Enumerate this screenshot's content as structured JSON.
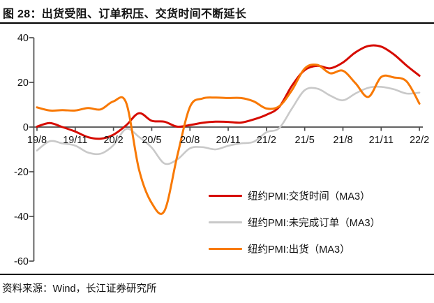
{
  "title": "图 28：出货受阻、订单积压、交货时间不断延长",
  "source": "资料来源：Wind，长江证券研究所",
  "chart_data": {
    "type": "line",
    "title": "图 28：出货受阻、订单积压、交货时间不断延长",
    "x_unit": "monthly (yy/m)",
    "x": [
      "19/8",
      "19/9",
      "19/10",
      "19/11",
      "19/12",
      "20/1",
      "20/2",
      "20/3",
      "20/4",
      "20/5",
      "20/6",
      "20/7",
      "20/8",
      "20/9",
      "20/10",
      "20/11",
      "20/12",
      "21/1",
      "21/2",
      "21/3",
      "21/4",
      "21/5",
      "21/6",
      "21/7",
      "21/8",
      "21/9",
      "21/10",
      "21/11",
      "21/12",
      "22/1",
      "22/2"
    ],
    "x_tick_labels": [
      "19/8",
      "19/11",
      "20/2",
      "20/5",
      "20/8",
      "20/11",
      "21/2",
      "21/5",
      "21/8",
      "21/11",
      "22/2"
    ],
    "y_ticks": [
      40,
      20,
      0,
      -20,
      -40,
      -60
    ],
    "ylim": [
      -60,
      40
    ],
    "grid": "off",
    "legend_position": "inside lower-right",
    "axis_color": "#4d4d4d",
    "text_color": "#111111",
    "series": [
      {
        "name": "纽约PMI:交货时间（MA3）",
        "color": "#d60b00",
        "width": 3.0,
        "values": [
          0.2,
          1.8,
          0.0,
          -2.0,
          -4.5,
          -5.2,
          -3.4,
          0.8,
          6.2,
          2.8,
          2.4,
          0.2,
          0.9,
          1.9,
          2.4,
          2.3,
          2.0,
          3.4,
          5.5,
          9.0,
          18.5,
          25.5,
          27.4,
          26.3,
          28.9,
          33.5,
          36.3,
          36.0,
          32.5,
          27.5,
          23.0
        ]
      },
      {
        "name": "纽约PMI:未完成订单（MA3）",
        "color": "#c9c9c9",
        "width": 2.6,
        "values": [
          -10.5,
          -6.3,
          -7.3,
          -8.3,
          -11.4,
          -11.9,
          -8.1,
          -0.8,
          -4.4,
          -9.2,
          -16.3,
          -14.5,
          -9.5,
          -9.0,
          -10.0,
          -8.4,
          -7.3,
          -6.6,
          -2.3,
          -0.5,
          8.3,
          16.5,
          17.2,
          14.1,
          12.0,
          15.1,
          17.6,
          18.0,
          16.9,
          15.0,
          15.4
        ]
      },
      {
        "name": "纽约PMI:出货（MA3）",
        "color": "#f87905",
        "width": 3.0,
        "values": [
          8.8,
          7.4,
          7.6,
          7.4,
          8.5,
          7.9,
          11.5,
          10.8,
          -19.0,
          -34.0,
          -37.5,
          -13.0,
          9.0,
          12.8,
          13.2,
          13.0,
          13.0,
          11.5,
          8.3,
          9.3,
          16.5,
          26.2,
          27.8,
          24.1,
          25.2,
          19.5,
          13.5,
          22.4,
          22.2,
          20.4,
          10.5
        ]
      }
    ]
  }
}
